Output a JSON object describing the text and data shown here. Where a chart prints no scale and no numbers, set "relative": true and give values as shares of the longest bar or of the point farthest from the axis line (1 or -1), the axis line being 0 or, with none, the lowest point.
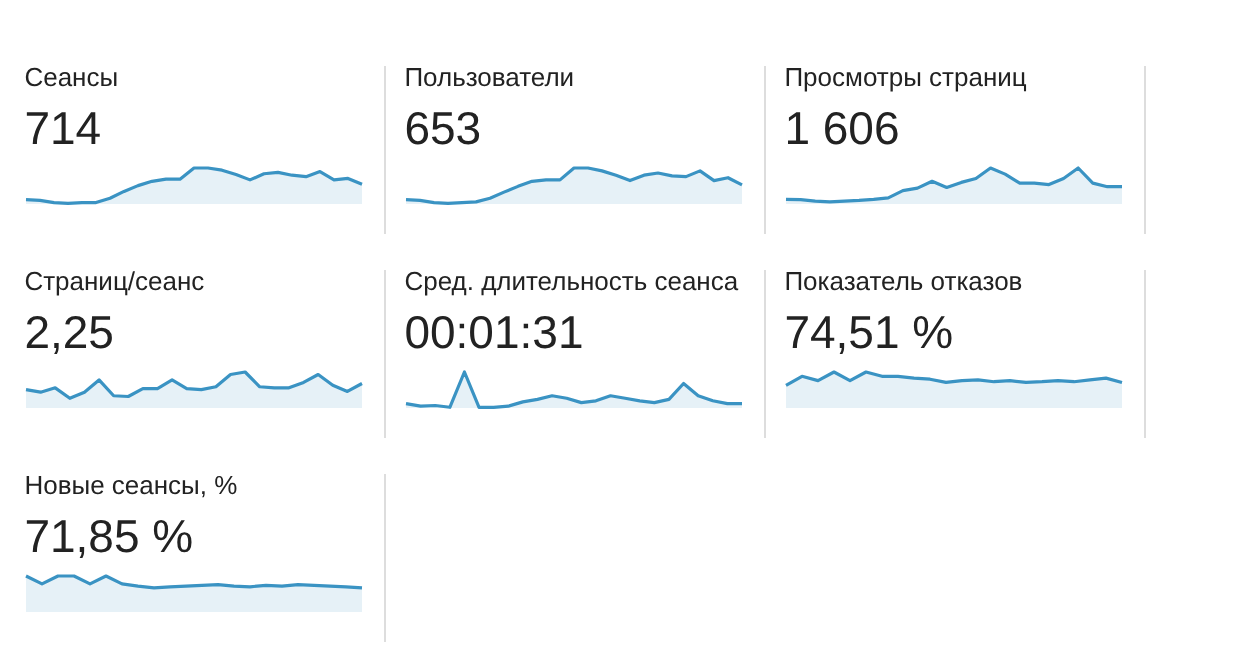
{
  "chart_data": [
    {
      "type": "area",
      "title": "Сеансы",
      "subtitle": "714",
      "relative": true,
      "categories": [
        null,
        null,
        null,
        null,
        null,
        null,
        null,
        null,
        null,
        null,
        null,
        null,
        null,
        null,
        null,
        null,
        null,
        null,
        null,
        null,
        null,
        null,
        null,
        null,
        null
      ],
      "series": [
        {
          "color": "#3a93c3",
          "values": [
            0.12,
            0.1,
            0.04,
            0.02,
            0.04,
            0.04,
            0.16,
            0.35,
            0.51,
            0.63,
            0.69,
            0.69,
            1,
            1,
            0.94,
            0.82,
            0.67,
            0.84,
            0.88,
            0.8,
            0.76,
            0.9,
            0.67,
            0.71,
            0.55
          ]
        }
      ]
    },
    {
      "type": "area",
      "title": "Пользователи",
      "subtitle": "653",
      "relative": true,
      "categories": [
        null,
        null,
        null,
        null,
        null,
        null,
        null,
        null,
        null,
        null,
        null,
        null,
        null,
        null,
        null,
        null,
        null,
        null,
        null,
        null,
        null,
        null,
        null,
        null,
        null
      ],
      "series": [
        {
          "color": "#3a93c3",
          "values": [
            0.12,
            0.1,
            0.04,
            0.02,
            0.04,
            0.06,
            0.16,
            0.33,
            0.49,
            0.63,
            0.67,
            0.67,
            1,
            1,
            0.92,
            0.8,
            0.65,
            0.8,
            0.86,
            0.78,
            0.76,
            0.92,
            0.65,
            0.73,
            0.53
          ]
        }
      ]
    },
    {
      "type": "area",
      "title": "Просмотры страниц",
      "subtitle": "1 606",
      "relative": true,
      "categories": [
        null,
        null,
        null,
        null,
        null,
        null,
        null,
        null,
        null,
        null,
        null,
        null,
        null,
        null,
        null,
        null,
        null,
        null,
        null,
        null,
        null,
        null,
        null,
        null
      ],
      "series": [
        {
          "color": "#3a93c3",
          "values": [
            0.13,
            0.12,
            0.08,
            0.06,
            0.08,
            0.1,
            0.13,
            0.17,
            0.37,
            0.44,
            0.63,
            0.46,
            0.6,
            0.71,
            1,
            0.83,
            0.58,
            0.58,
            0.54,
            0.71,
            1,
            0.58,
            0.48,
            0.48
          ]
        }
      ]
    },
    {
      "type": "area",
      "title": "Страниц/сеанс",
      "subtitle": "2,25",
      "relative": true,
      "categories": [
        null,
        null,
        null,
        null,
        null,
        null,
        null,
        null,
        null,
        null,
        null,
        null,
        null,
        null,
        null,
        null,
        null,
        null,
        null,
        null,
        null,
        null,
        null,
        null
      ],
      "series": [
        {
          "color": "#3a93c3",
          "values": [
            0.51,
            0.44,
            0.56,
            0.27,
            0.44,
            0.78,
            0.34,
            0.32,
            0.54,
            0.54,
            0.78,
            0.54,
            0.51,
            0.59,
            0.93,
            1,
            0.59,
            0.56,
            0.56,
            0.71,
            0.93,
            0.63,
            0.46,
            0.68
          ]
        }
      ]
    },
    {
      "type": "area",
      "title": "Сред. длительность сеанса",
      "subtitle": "00:01:31",
      "relative": true,
      "categories": [
        null,
        null,
        null,
        null,
        null,
        null,
        null,
        null,
        null,
        null,
        null,
        null,
        null,
        null,
        null,
        null,
        null,
        null,
        null,
        null,
        null,
        null,
        null,
        null
      ],
      "series": [
        {
          "color": "#3a93c3",
          "values": [
            0.12,
            0.05,
            0.07,
            0.02,
            1,
            0.02,
            0.02,
            0.05,
            0.17,
            0.24,
            0.34,
            0.27,
            0.15,
            0.2,
            0.34,
            0.27,
            0.2,
            0.15,
            0.24,
            0.68,
            0.34,
            0.2,
            0.12,
            0.12
          ]
        }
      ]
    },
    {
      "type": "area",
      "title": "Показатель отказов",
      "subtitle": "74,51 %",
      "relative": true,
      "categories": [
        null,
        null,
        null,
        null,
        null,
        null,
        null,
        null,
        null,
        null,
        null,
        null,
        null,
        null,
        null,
        null,
        null,
        null,
        null,
        null,
        null,
        null
      ],
      "series": [
        {
          "color": "#3a93c3",
          "values": [
            0.63,
            0.88,
            0.76,
            1,
            0.76,
            1,
            0.88,
            0.88,
            0.83,
            0.8,
            0.71,
            0.76,
            0.78,
            0.73,
            0.76,
            0.71,
            0.73,
            0.76,
            0.73,
            0.78,
            0.83,
            0.71
          ]
        }
      ]
    },
    {
      "type": "area",
      "title": "Новые сеансы, %",
      "subtitle": "71,85 %",
      "relative": true,
      "categories": [
        null,
        null,
        null,
        null,
        null,
        null,
        null,
        null,
        null,
        null,
        null,
        null,
        null,
        null,
        null,
        null,
        null,
        null,
        null,
        null,
        null,
        null
      ],
      "series": [
        {
          "color": "#3a93c3",
          "values": [
            1,
            0.78,
            1,
            1,
            0.78,
            1,
            0.78,
            0.72,
            0.67,
            0.7,
            0.72,
            0.74,
            0.76,
            0.72,
            0.7,
            0.74,
            0.72,
            0.76,
            0.74,
            0.72,
            0.7,
            0.67
          ]
        }
      ]
    }
  ]
}
